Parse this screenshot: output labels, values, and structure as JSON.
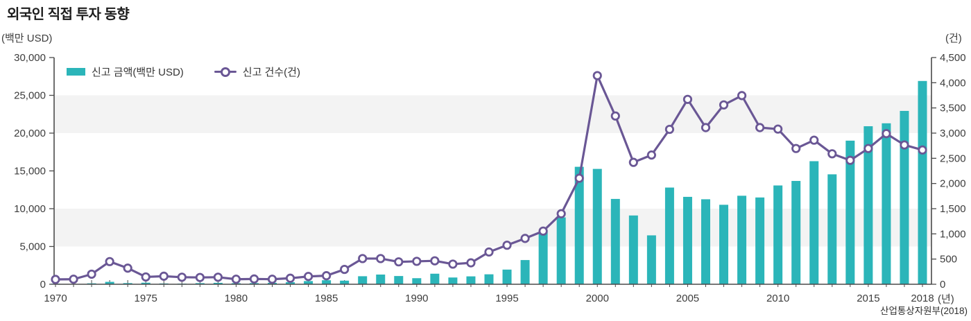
{
  "title": "외국인 직접 투자 동향",
  "source": "산업통상자원부(2018)",
  "legend": [
    {
      "label": "신고 금액(백만 USD)",
      "type": "bar",
      "color": "#2bb5b9"
    },
    {
      "label": "신고 건수(건)",
      "type": "line",
      "color": "#6a5795"
    }
  ],
  "colors": {
    "bar": "#2bb5b9",
    "line": "#6a5795",
    "marker_fill": "#ffffff",
    "stripe": "#f3f3f3",
    "axis": "#4a4a4a",
    "tick_text": "#3c3c3c"
  },
  "chart_data": {
    "type": "combo",
    "title": "외국인 직접 투자 동향",
    "x": [
      1970,
      1971,
      1972,
      1973,
      1974,
      1975,
      1976,
      1977,
      1978,
      1979,
      1980,
      1981,
      1982,
      1983,
      1984,
      1985,
      1986,
      1987,
      1988,
      1989,
      1990,
      1991,
      1992,
      1993,
      1994,
      1995,
      1996,
      1997,
      1998,
      1999,
      2000,
      2001,
      2002,
      2003,
      2004,
      2005,
      2006,
      2007,
      2008,
      2009,
      2010,
      2011,
      2012,
      2013,
      2014,
      2015,
      2016,
      2017,
      2018
    ],
    "series": [
      {
        "name": "신고 금액(백만 USD)",
        "type": "bar",
        "axis": "left",
        "color": "#2bb5b9",
        "values": [
          76,
          41,
          122,
          318,
          153,
          207,
          106,
          83,
          149,
          191,
          143,
          153,
          189,
          269,
          422,
          532,
          477,
          1063,
          1284,
          1090,
          803,
          1396,
          894,
          1044,
          1317,
          1941,
          3203,
          6971,
          8852,
          15542,
          15265,
          11292,
          9101,
          6471,
          12796,
          11566,
          11247,
          10516,
          11712,
          11484,
          13073,
          13673,
          16286,
          14548,
          19003,
          20910,
          21300,
          22940,
          26900
        ]
      },
      {
        "name": "신고 건수(건)",
        "type": "line",
        "axis": "right",
        "color": "#6a5795",
        "marker": "open-circle",
        "values": [
          96,
          100,
          200,
          450,
          320,
          145,
          160,
          140,
          135,
          140,
          100,
          105,
          100,
          120,
          155,
          170,
          295,
          510,
          510,
          445,
          455,
          465,
          400,
          425,
          640,
          775,
          910,
          1055,
          1400,
          2105,
          4141,
          3340,
          2420,
          2565,
          3075,
          3670,
          3110,
          3560,
          3745,
          3110,
          3080,
          2695,
          2860,
          2590,
          2460,
          2695,
          2990,
          2765,
          2665
        ]
      }
    ],
    "left_axis": {
      "unit": "(백만 USD)",
      "min": 0,
      "max": 30000,
      "step": 5000,
      "tick_labels": [
        "0",
        "5,000",
        "10,000",
        "15,000",
        "20,000",
        "25,000",
        "30,000"
      ]
    },
    "right_axis": {
      "unit": "(건)",
      "min": 0,
      "max": 4500,
      "step": 500,
      "tick_labels": [
        "0",
        "500",
        "1,000",
        "1,500",
        "2,000",
        "2,500",
        "3,000",
        "3,500",
        "4,000",
        "4,500"
      ]
    },
    "x_axis": {
      "unit": "(년)",
      "tick_years": [
        1970,
        1975,
        1980,
        1985,
        1990,
        1995,
        2000,
        2005,
        2010,
        2015,
        2018
      ]
    },
    "grid_bands_left": [
      [
        5000,
        10000
      ],
      [
        20000,
        25000
      ]
    ],
    "legend_position": "top-left-inside",
    "grid": "horizontal-bands"
  }
}
